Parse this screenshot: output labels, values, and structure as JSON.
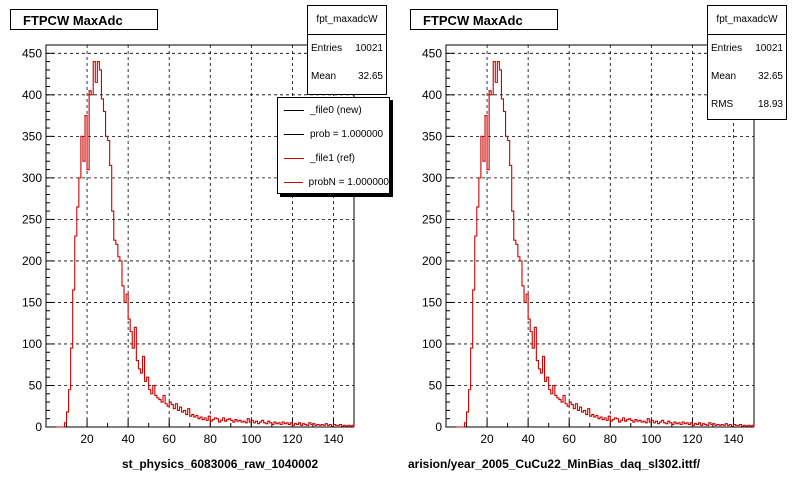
{
  "chart_data": [
    {
      "type": "histogram",
      "title": "FTPCW MaxAdc",
      "xlim": [
        0,
        150
      ],
      "ylim": [
        0,
        460
      ],
      "xticks": [
        20,
        40,
        60,
        80,
        100,
        120,
        140
      ],
      "yticks": [
        0,
        50,
        100,
        150,
        200,
        250,
        300,
        350,
        400,
        450
      ],
      "grid": true,
      "xlabel": "st_physics_6083006_raw_1040002",
      "stats": {
        "title": "fpt_maxadcW",
        "rows": [
          {
            "label": "Entries",
            "value": "10021"
          },
          {
            "label": "Mean",
            "value": "32.65"
          }
        ]
      },
      "legend": {
        "placement": "top-right",
        "entries": [
          {
            "label": "_file0 (new)",
            "color": "#000000"
          },
          {
            "label": "prob = 1.000000",
            "color": "#000000"
          },
          {
            "label": "_file1 (ref)",
            "color": "#cc0000"
          },
          {
            "label": "probN = 1.000000",
            "color": "#cc0000"
          }
        ]
      },
      "series": [
        {
          "color": "#cc0000",
          "x": [
            5,
            6,
            7,
            8,
            9,
            10,
            11,
            12,
            13,
            14,
            15,
            16,
            17,
            18,
            19,
            20,
            21,
            22,
            23,
            24,
            25,
            26,
            27,
            28,
            29,
            30,
            31,
            32,
            33,
            34,
            35,
            36,
            37,
            38,
            39,
            40,
            41,
            42,
            43,
            44,
            45,
            46,
            47,
            48,
            49,
            50,
            51,
            52,
            53,
            54,
            55,
            56,
            57,
            58,
            59,
            60,
            61,
            62,
            63,
            64,
            65,
            66,
            67,
            68,
            69,
            70,
            71,
            72,
            73,
            74,
            75,
            76,
            77,
            78,
            79,
            80,
            81,
            82,
            83,
            84,
            85,
            86,
            87,
            88,
            89,
            90,
            91,
            92,
            93,
            94,
            95,
            96,
            97,
            98,
            99,
            100,
            101,
            102,
            103,
            104,
            105,
            106,
            107,
            108,
            109,
            110,
            111,
            112,
            113,
            114,
            115,
            116,
            117,
            118,
            119,
            120,
            121,
            122,
            123,
            124,
            125,
            126,
            127,
            128,
            129,
            130,
            131,
            132,
            133,
            134,
            135,
            136,
            137,
            138,
            139,
            140,
            141,
            142,
            143,
            144,
            145,
            146,
            147,
            148,
            149
          ],
          "values": [
            0,
            0,
            0,
            0,
            5,
            18,
            45,
            95,
            165,
            230,
            265,
            300,
            350,
            320,
            375,
            310,
            405,
            400,
            440,
            415,
            440,
            430,
            395,
            380,
            350,
            345,
            315,
            260,
            225,
            220,
            205,
            200,
            170,
            150,
            160,
            130,
            115,
            95,
            120,
            80,
            70,
            65,
            85,
            55,
            60,
            45,
            40,
            50,
            38,
            35,
            33,
            30,
            38,
            28,
            25,
            30,
            27,
            22,
            28,
            20,
            24,
            18,
            20,
            15,
            22,
            13,
            15,
            12,
            14,
            10,
            12,
            9,
            11,
            8,
            13,
            7,
            9,
            11,
            10,
            6,
            8,
            11,
            7,
            9,
            10,
            8,
            6,
            9,
            7,
            8,
            6,
            7,
            5,
            10,
            6,
            8,
            5,
            7,
            4,
            6,
            8,
            5,
            4,
            7,
            5,
            3,
            6,
            4,
            5,
            3,
            6,
            4,
            5,
            3,
            5,
            2,
            4,
            3,
            5,
            2,
            4,
            3,
            2,
            5,
            3,
            4,
            2,
            3,
            2,
            3,
            2,
            4,
            2,
            3,
            1,
            3,
            2,
            2,
            3,
            1,
            2,
            1,
            2,
            1,
            2
          ]
        }
      ]
    },
    {
      "type": "histogram",
      "title": "FTPCW MaxAdc",
      "xlim": [
        0,
        150
      ],
      "ylim": [
        0,
        460
      ],
      "xticks": [
        20,
        40,
        60,
        80,
        100,
        120,
        140
      ],
      "yticks": [
        0,
        50,
        100,
        150,
        200,
        250,
        300,
        350,
        400,
        450
      ],
      "grid": true,
      "xlabel": "arision/year_2005_CuCu22_MinBias_daq_sl302.ittf/",
      "stats": {
        "title": "fpt_maxadcW",
        "rows": [
          {
            "label": "Entries",
            "value": "10021"
          },
          {
            "label": "Mean",
            "value": "32.65"
          },
          {
            "label": "RMS",
            "value": "18.93"
          }
        ]
      },
      "series": [
        {
          "color": "#cc0000",
          "x": [
            5,
            6,
            7,
            8,
            9,
            10,
            11,
            12,
            13,
            14,
            15,
            16,
            17,
            18,
            19,
            20,
            21,
            22,
            23,
            24,
            25,
            26,
            27,
            28,
            29,
            30,
            31,
            32,
            33,
            34,
            35,
            36,
            37,
            38,
            39,
            40,
            41,
            42,
            43,
            44,
            45,
            46,
            47,
            48,
            49,
            50,
            51,
            52,
            53,
            54,
            55,
            56,
            57,
            58,
            59,
            60,
            61,
            62,
            63,
            64,
            65,
            66,
            67,
            68,
            69,
            70,
            71,
            72,
            73,
            74,
            75,
            76,
            77,
            78,
            79,
            80,
            81,
            82,
            83,
            84,
            85,
            86,
            87,
            88,
            89,
            90,
            91,
            92,
            93,
            94,
            95,
            96,
            97,
            98,
            99,
            100,
            101,
            102,
            103,
            104,
            105,
            106,
            107,
            108,
            109,
            110,
            111,
            112,
            113,
            114,
            115,
            116,
            117,
            118,
            119,
            120,
            121,
            122,
            123,
            124,
            125,
            126,
            127,
            128,
            129,
            130,
            131,
            132,
            133,
            134,
            135,
            136,
            137,
            138,
            139,
            140,
            141,
            142,
            143,
            144,
            145,
            146,
            147,
            148,
            149
          ],
          "values": [
            0,
            0,
            0,
            0,
            5,
            18,
            45,
            95,
            165,
            230,
            265,
            300,
            350,
            320,
            375,
            310,
            405,
            400,
            440,
            415,
            440,
            430,
            395,
            380,
            350,
            345,
            315,
            260,
            225,
            220,
            205,
            200,
            170,
            150,
            160,
            130,
            115,
            95,
            120,
            80,
            70,
            65,
            85,
            55,
            60,
            45,
            40,
            50,
            38,
            35,
            33,
            30,
            38,
            28,
            25,
            30,
            27,
            22,
            28,
            20,
            24,
            18,
            20,
            15,
            22,
            13,
            15,
            12,
            14,
            10,
            12,
            9,
            11,
            8,
            13,
            7,
            9,
            11,
            10,
            6,
            8,
            11,
            7,
            9,
            10,
            8,
            6,
            9,
            7,
            8,
            6,
            7,
            5,
            10,
            6,
            8,
            5,
            7,
            4,
            6,
            8,
            5,
            4,
            7,
            5,
            3,
            6,
            4,
            5,
            3,
            6,
            4,
            5,
            3,
            5,
            2,
            4,
            3,
            5,
            2,
            4,
            3,
            2,
            5,
            3,
            4,
            2,
            3,
            2,
            3,
            2,
            4,
            2,
            3,
            1,
            3,
            2,
            2,
            3,
            1,
            2,
            1,
            2,
            1,
            2
          ]
        }
      ]
    }
  ]
}
